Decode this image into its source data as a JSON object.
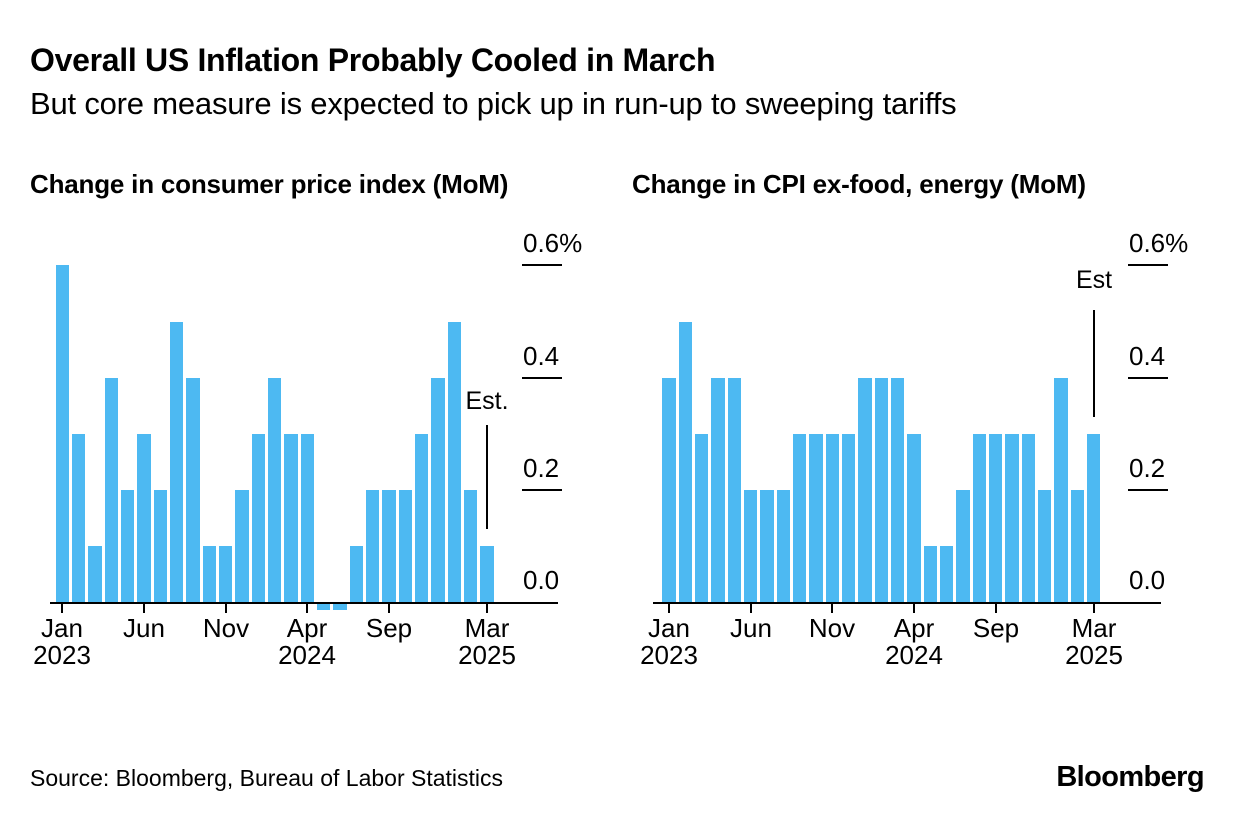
{
  "page": {
    "title": "Overall US Inflation Probably Cooled in March",
    "subtitle": "But core measure is expected to pick up in run-up to sweeping tariffs",
    "source": "Source: Bloomberg, Bureau of Labor Statistics",
    "brand": "Bloomberg"
  },
  "colors": {
    "bar": "#4db9f2",
    "axis": "#000000",
    "text": "#000000",
    "background": "#ffffff"
  },
  "chart_data": [
    {
      "type": "bar",
      "title": "Change in consumer price index (MoM)",
      "xlabel": "",
      "ylabel": "",
      "ylim": [
        -0.05,
        0.65
      ],
      "grid": false,
      "legend": null,
      "y_ticks": [
        {
          "value": 0.6,
          "label": "0.6%"
        },
        {
          "value": 0.4,
          "label": "0.4"
        },
        {
          "value": 0.2,
          "label": "0.2"
        },
        {
          "value": 0.0,
          "label": "0.0"
        }
      ],
      "categories": [
        "Jan 2023",
        "Feb 2023",
        "Mar 2023",
        "Apr 2023",
        "May 2023",
        "Jun 2023",
        "Jul 2023",
        "Aug 2023",
        "Sep 2023",
        "Oct 2023",
        "Nov 2023",
        "Dec 2023",
        "Jan 2024",
        "Feb 2024",
        "Mar 2024",
        "Apr 2024",
        "May 2024",
        "Jun 2024",
        "Jul 2024",
        "Aug 2024",
        "Sep 2024",
        "Oct 2024",
        "Nov 2024",
        "Dec 2024",
        "Jan 2025",
        "Feb 2025",
        "Mar 2025"
      ],
      "values": [
        0.6,
        0.3,
        0.1,
        0.4,
        0.2,
        0.3,
        0.2,
        0.5,
        0.4,
        0.1,
        0.1,
        0.2,
        0.3,
        0.4,
        0.3,
        0.3,
        -0.01,
        -0.01,
        0.1,
        0.2,
        0.2,
        0.2,
        0.3,
        0.4,
        0.5,
        0.2,
        0.1
      ],
      "x_ticks": [
        {
          "index": 0,
          "month": "Jan",
          "year": "2023"
        },
        {
          "index": 5,
          "month": "Jun",
          "year": ""
        },
        {
          "index": 10,
          "month": "Nov",
          "year": ""
        },
        {
          "index": 15,
          "month": "Apr",
          "year": "2024"
        },
        {
          "index": 20,
          "month": "Sep",
          "year": ""
        },
        {
          "index": 26,
          "month": "Mar",
          "year": "2025"
        }
      ],
      "estimate": {
        "label": "Est.",
        "index": 26,
        "value": 0.1,
        "whisker_range": [
          0.13,
          0.315
        ]
      }
    },
    {
      "type": "bar",
      "title": "Change in CPI ex-food, energy (MoM)",
      "xlabel": "",
      "ylabel": "",
      "ylim": [
        -0.05,
        0.65
      ],
      "grid": false,
      "legend": null,
      "y_ticks": [
        {
          "value": 0.6,
          "label": "0.6%"
        },
        {
          "value": 0.4,
          "label": "0.4"
        },
        {
          "value": 0.2,
          "label": "0.2"
        },
        {
          "value": 0.0,
          "label": "0.0"
        }
      ],
      "categories": [
        "Jan 2023",
        "Feb 2023",
        "Mar 2023",
        "Apr 2023",
        "May 2023",
        "Jun 2023",
        "Jul 2023",
        "Aug 2023",
        "Sep 2023",
        "Oct 2023",
        "Nov 2023",
        "Dec 2023",
        "Jan 2024",
        "Feb 2024",
        "Mar 2024",
        "Apr 2024",
        "May 2024",
        "Jun 2024",
        "Jul 2024",
        "Aug 2024",
        "Sep 2024",
        "Oct 2024",
        "Nov 2024",
        "Dec 2024",
        "Jan 2025",
        "Feb 2025",
        "Mar 2025"
      ],
      "values": [
        0.4,
        0.5,
        0.3,
        0.4,
        0.4,
        0.2,
        0.2,
        0.2,
        0.3,
        0.3,
        0.3,
        0.3,
        0.4,
        0.4,
        0.4,
        0.3,
        0.1,
        0.1,
        0.2,
        0.3,
        0.3,
        0.3,
        0.3,
        0.2,
        0.4,
        0.2,
        0.3
      ],
      "x_ticks": [
        {
          "index": 0,
          "month": "Jan",
          "year": "2023"
        },
        {
          "index": 5,
          "month": "Jun",
          "year": ""
        },
        {
          "index": 10,
          "month": "Nov",
          "year": ""
        },
        {
          "index": 15,
          "month": "Apr",
          "year": "2024"
        },
        {
          "index": 20,
          "month": "Sep",
          "year": ""
        },
        {
          "index": 26,
          "month": "Mar",
          "year": "2025"
        }
      ],
      "estimate": {
        "label": "Est",
        "index": 26,
        "value": 0.3,
        "whisker_range": [
          0.33,
          0.52
        ]
      }
    }
  ]
}
